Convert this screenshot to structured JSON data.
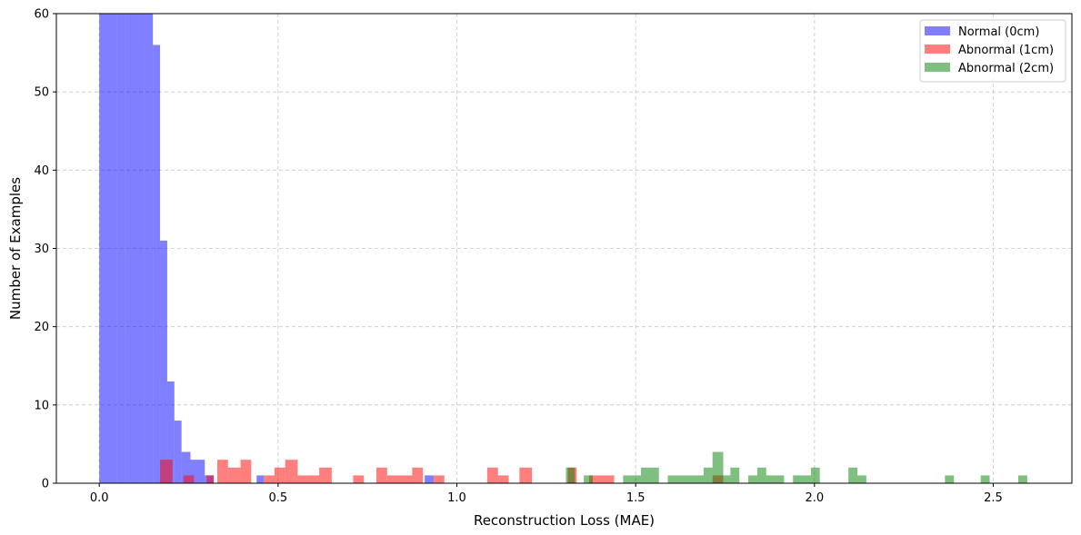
{
  "chart_data": {
    "type": "bar",
    "xlabel": "Reconstruction Loss (MAE)",
    "ylabel": "Number of Examples",
    "xlim": [
      -0.12,
      2.72
    ],
    "ylim": [
      0,
      60
    ],
    "xticks": [
      0.0,
      0.5,
      1.0,
      1.5,
      2.0,
      2.5
    ],
    "xtick_labels": [
      "0.0",
      "0.5",
      "1.0",
      "1.5",
      "2.0",
      "2.5"
    ],
    "yticks": [
      0,
      10,
      20,
      30,
      40,
      50,
      60
    ],
    "ytick_labels": [
      "0",
      "10",
      "20",
      "30",
      "40",
      "50",
      "60"
    ],
    "grid": true,
    "legend_position": "top-right",
    "series": [
      {
        "name": "Normal (0cm)",
        "color": "#0000ff",
        "opacity": 0.5,
        "bins": [
          {
            "x0": 0.0,
            "x1": 0.025,
            "count": 60
          },
          {
            "x0": 0.025,
            "x1": 0.05,
            "count": 60
          },
          {
            "x0": 0.05,
            "x1": 0.075,
            "count": 60
          },
          {
            "x0": 0.075,
            "x1": 0.1,
            "count": 60
          },
          {
            "x0": 0.1,
            "x1": 0.125,
            "count": 60
          },
          {
            "x0": 0.125,
            "x1": 0.15,
            "count": 60
          },
          {
            "x0": 0.15,
            "x1": 0.17,
            "count": 56
          },
          {
            "x0": 0.17,
            "x1": 0.19,
            "count": 31
          },
          {
            "x0": 0.19,
            "x1": 0.21,
            "count": 13
          },
          {
            "x0": 0.21,
            "x1": 0.23,
            "count": 8
          },
          {
            "x0": 0.23,
            "x1": 0.255,
            "count": 4
          },
          {
            "x0": 0.255,
            "x1": 0.295,
            "count": 3
          },
          {
            "x0": 0.295,
            "x1": 0.32,
            "count": 1
          },
          {
            "x0": 0.44,
            "x1": 0.46,
            "count": 1
          },
          {
            "x0": 0.91,
            "x1": 0.935,
            "count": 1
          }
        ]
      },
      {
        "name": "Abnormal (1cm)",
        "color": "#ff0000",
        "opacity": 0.5,
        "bins": [
          {
            "x0": 0.17,
            "x1": 0.205,
            "count": 3
          },
          {
            "x0": 0.235,
            "x1": 0.265,
            "count": 1
          },
          {
            "x0": 0.3,
            "x1": 0.32,
            "count": 1
          },
          {
            "x0": 0.33,
            "x1": 0.36,
            "count": 3
          },
          {
            "x0": 0.36,
            "x1": 0.395,
            "count": 2
          },
          {
            "x0": 0.395,
            "x1": 0.425,
            "count": 3
          },
          {
            "x0": 0.46,
            "x1": 0.49,
            "count": 1
          },
          {
            "x0": 0.49,
            "x1": 0.52,
            "count": 2
          },
          {
            "x0": 0.52,
            "x1": 0.555,
            "count": 3
          },
          {
            "x0": 0.555,
            "x1": 0.615,
            "count": 1
          },
          {
            "x0": 0.615,
            "x1": 0.65,
            "count": 2
          },
          {
            "x0": 0.71,
            "x1": 0.74,
            "count": 1
          },
          {
            "x0": 0.775,
            "x1": 0.805,
            "count": 2
          },
          {
            "x0": 0.805,
            "x1": 0.875,
            "count": 1
          },
          {
            "x0": 0.875,
            "x1": 0.905,
            "count": 2
          },
          {
            "x0": 0.935,
            "x1": 0.965,
            "count": 1
          },
          {
            "x0": 1.085,
            "x1": 1.115,
            "count": 2
          },
          {
            "x0": 1.115,
            "x1": 1.145,
            "count": 1
          },
          {
            "x0": 1.175,
            "x1": 1.21,
            "count": 2
          },
          {
            "x0": 1.31,
            "x1": 1.335,
            "count": 2
          },
          {
            "x0": 1.37,
            "x1": 1.44,
            "count": 1
          },
          {
            "x0": 1.715,
            "x1": 1.745,
            "count": 1
          }
        ]
      },
      {
        "name": "Abnormal (2cm)",
        "color": "#008000",
        "opacity": 0.5,
        "bins": [
          {
            "x0": 1.305,
            "x1": 1.33,
            "count": 2
          },
          {
            "x0": 1.355,
            "x1": 1.38,
            "count": 1
          },
          {
            "x0": 1.465,
            "x1": 1.515,
            "count": 1
          },
          {
            "x0": 1.515,
            "x1": 1.565,
            "count": 2
          },
          {
            "x0": 1.59,
            "x1": 1.69,
            "count": 1
          },
          {
            "x0": 1.69,
            "x1": 1.715,
            "count": 2
          },
          {
            "x0": 1.715,
            "x1": 1.745,
            "count": 4
          },
          {
            "x0": 1.745,
            "x1": 1.765,
            "count": 1
          },
          {
            "x0": 1.765,
            "x1": 1.79,
            "count": 2
          },
          {
            "x0": 1.815,
            "x1": 1.84,
            "count": 1
          },
          {
            "x0": 1.84,
            "x1": 1.865,
            "count": 2
          },
          {
            "x0": 1.865,
            "x1": 1.915,
            "count": 1
          },
          {
            "x0": 1.94,
            "x1": 1.99,
            "count": 1
          },
          {
            "x0": 1.99,
            "x1": 2.015,
            "count": 2
          },
          {
            "x0": 2.095,
            "x1": 2.12,
            "count": 2
          },
          {
            "x0": 2.12,
            "x1": 2.145,
            "count": 1
          },
          {
            "x0": 2.365,
            "x1": 2.39,
            "count": 1
          },
          {
            "x0": 2.465,
            "x1": 2.49,
            "count": 1
          },
          {
            "x0": 2.57,
            "x1": 2.595,
            "count": 1
          }
        ]
      }
    ]
  }
}
